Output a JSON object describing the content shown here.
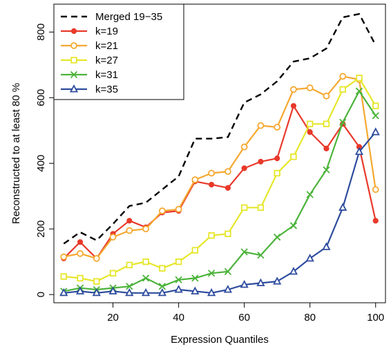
{
  "chart_data": {
    "type": "line",
    "xlabel": "Expression Quantiles",
    "ylabel": "Reconstructed to at least  80 %",
    "xlim": [
      2,
      103
    ],
    "ylim": [
      -25,
      885
    ],
    "xticks": [
      "20",
      "40",
      "60",
      "80",
      "100"
    ],
    "yticks": [
      "0",
      "200",
      "400",
      "600",
      "800"
    ],
    "grid": false,
    "legend": "top-left",
    "x": [
      5,
      10,
      15,
      20,
      25,
      30,
      35,
      40,
      45,
      50,
      55,
      60,
      65,
      70,
      75,
      80,
      85,
      90,
      95,
      100
    ],
    "series": [
      {
        "name": "Merged 19−35",
        "color": "#000000",
        "dash": "dashed",
        "marker": "none",
        "values": [
          155,
          190,
          165,
          215,
          270,
          280,
          320,
          360,
          475,
          475,
          480,
          585,
          610,
          650,
          710,
          720,
          750,
          845,
          855,
          760
        ]
      },
      {
        "name": "k=19",
        "color": "#e8392a",
        "dash": "solid",
        "marker": "filled-circle",
        "values": [
          110,
          160,
          110,
          185,
          225,
          205,
          250,
          255,
          345,
          335,
          325,
          385,
          405,
          415,
          575,
          495,
          445,
          520,
          450,
          225
        ]
      },
      {
        "name": "k=21",
        "color": "#f5a830",
        "dash": "solid",
        "marker": "open-circle",
        "values": [
          115,
          125,
          110,
          175,
          195,
          200,
          255,
          260,
          350,
          370,
          375,
          450,
          515,
          510,
          625,
          630,
          605,
          665,
          655,
          320
        ]
      },
      {
        "name": "k=27",
        "color": "#e6e62a",
        "dash": "solid",
        "marker": "open-square",
        "values": [
          55,
          50,
          40,
          65,
          90,
          100,
          80,
          100,
          135,
          180,
          185,
          265,
          265,
          370,
          420,
          520,
          520,
          625,
          660,
          575
        ]
      },
      {
        "name": "k=31",
        "color": "#4bb33a",
        "dash": "solid",
        "marker": "x",
        "values": [
          10,
          20,
          15,
          20,
          25,
          50,
          25,
          45,
          50,
          65,
          70,
          130,
          120,
          175,
          210,
          305,
          380,
          525,
          620,
          545
        ]
      },
      {
        "name": "k=35",
        "color": "#2e4c9e",
        "dash": "solid",
        "marker": "open-triangle",
        "values": [
          5,
          10,
          5,
          10,
          5,
          5,
          5,
          15,
          10,
          5,
          15,
          30,
          35,
          40,
          70,
          110,
          145,
          265,
          435,
          495
        ]
      }
    ]
  }
}
